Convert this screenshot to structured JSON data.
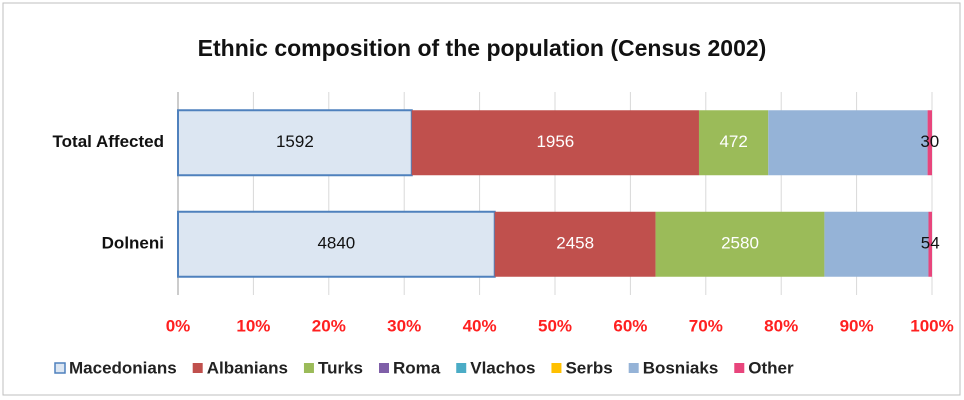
{
  "chart_data": {
    "type": "bar",
    "orientation": "horizontal",
    "stacking": "percent",
    "title": "Ethnic composition of the population (Census 2002)",
    "categories": [
      "Total Affected",
      "Dolneni"
    ],
    "series": [
      {
        "name": "Macedonians",
        "color": "#dce6f2",
        "values": [
          1592,
          4840
        ],
        "value_labels": [
          "1592",
          "4840"
        ]
      },
      {
        "name": "Albanians",
        "color": "#c0504d",
        "values": [
          1956,
          2458
        ],
        "value_labels": [
          "1956",
          "2458"
        ]
      },
      {
        "name": "Turks",
        "color": "#9bbb59",
        "values": [
          472,
          2580
        ],
        "value_labels": [
          "472",
          "2580"
        ]
      },
      {
        "name": "Roma",
        "color": "#7f5fa8",
        "values": [
          0,
          0
        ],
        "value_labels": [
          null,
          null
        ]
      },
      {
        "name": "Vlachos",
        "color": "#4bacc6",
        "values": [
          0,
          0
        ],
        "value_labels": [
          null,
          null
        ]
      },
      {
        "name": "Serbs",
        "color": "#ffc000",
        "values": [
          0,
          0
        ],
        "value_labels": [
          null,
          null
        ]
      },
      {
        "name": "Bosniaks",
        "color": "#95b3d7",
        "values": [
          1085,
          1590
        ],
        "value_labels": [
          null,
          null
        ]
      },
      {
        "name": "Other",
        "color": "#e8457c",
        "values": [
          30,
          54
        ],
        "value_labels": [
          "30",
          "54"
        ]
      }
    ],
    "xlim": [
      0,
      100
    ],
    "xticks": [
      {
        "value": 0,
        "label": "0%"
      },
      {
        "value": 10,
        "label": "10%"
      },
      {
        "value": 20,
        "label": "20%"
      },
      {
        "value": 30,
        "label": "30%"
      },
      {
        "value": 40,
        "label": "40%"
      },
      {
        "value": 50,
        "label": "50%"
      },
      {
        "value": 60,
        "label": "60%"
      },
      {
        "value": 70,
        "label": "70%"
      },
      {
        "value": 80,
        "label": "80%"
      },
      {
        "value": 90,
        "label": "90%"
      },
      {
        "value": 100,
        "label": "100%"
      }
    ],
    "grid": true,
    "legend": "bottom"
  }
}
